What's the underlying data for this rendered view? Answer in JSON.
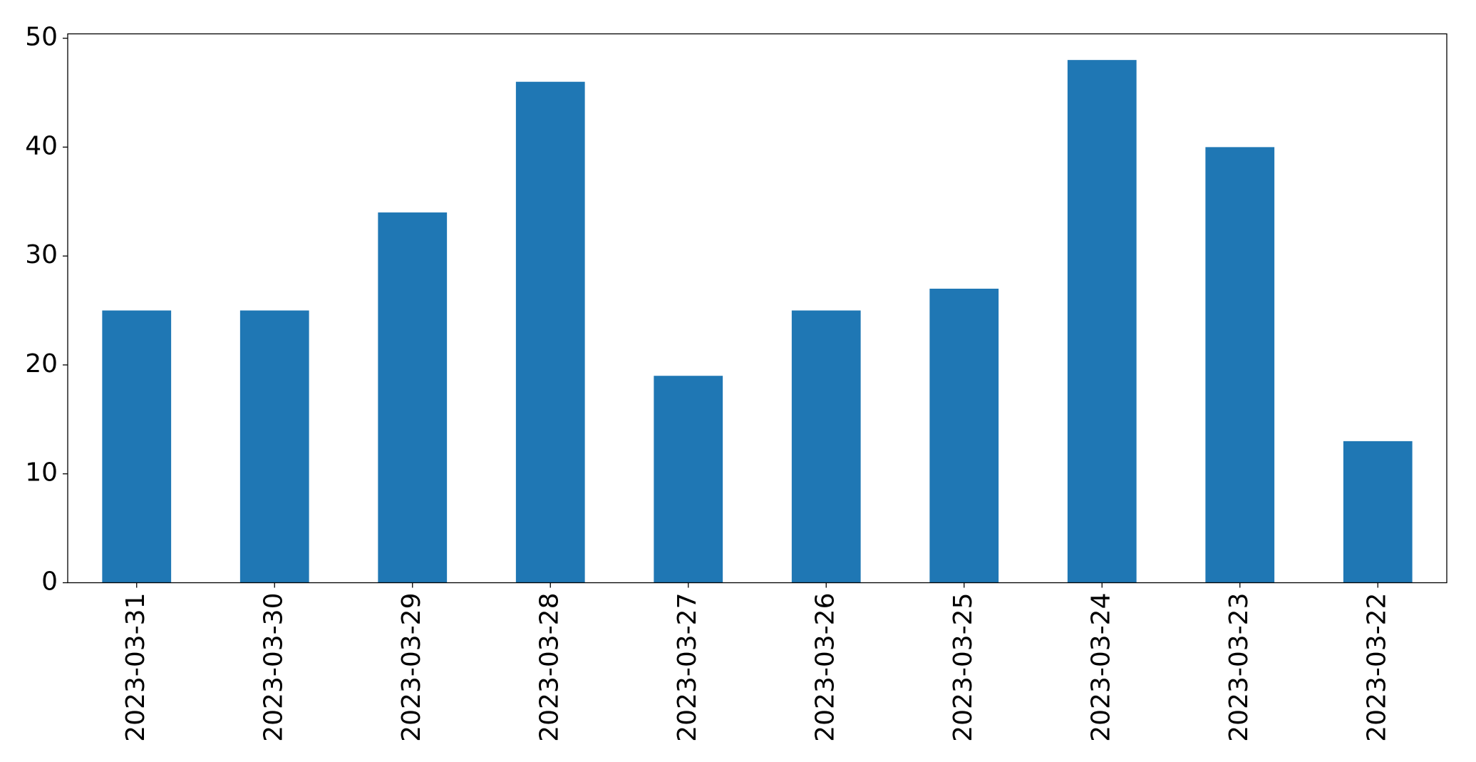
{
  "chart_data": {
    "type": "bar",
    "categories": [
      "2023-03-31",
      "2023-03-30",
      "2023-03-29",
      "2023-03-28",
      "2023-03-27",
      "2023-03-26",
      "2023-03-25",
      "2023-03-24",
      "2023-03-23",
      "2023-03-22"
    ],
    "values": [
      25,
      25,
      34,
      46,
      19,
      25,
      27,
      48,
      40,
      13
    ],
    "color": "#1f77b4",
    "ylim": [
      0,
      50.4
    ],
    "yticks": [
      0,
      10,
      20,
      30,
      40,
      50
    ],
    "grid": false
  }
}
